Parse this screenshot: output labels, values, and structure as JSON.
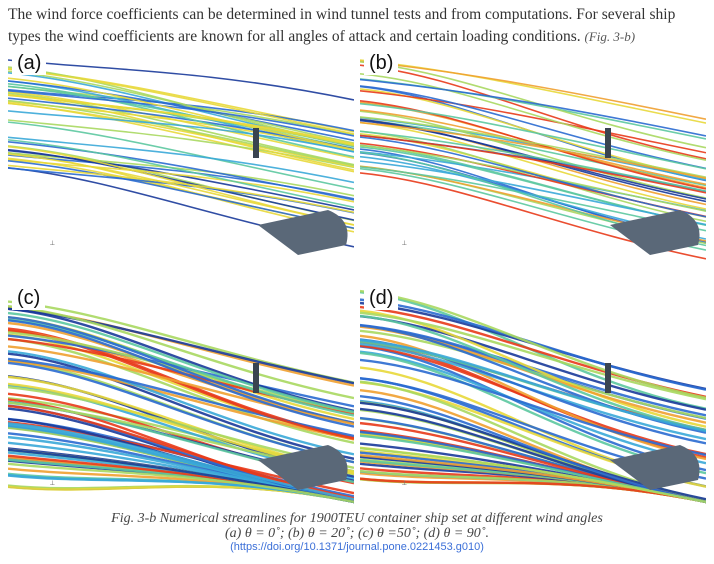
{
  "paragraph": {
    "text": "The wind force coefficients can be determined in wind tunnel tests and from computations. For several ship types the wind coefficients are known for all angles of attack and certain loading conditions.",
    "figure_ref": "(Fig. 3-b)"
  },
  "figure": {
    "panels": [
      {
        "label": "(a)",
        "angle_deg": 0
      },
      {
        "label": "(b)",
        "angle_deg": 20
      },
      {
        "label": "(c)",
        "angle_deg": 50
      },
      {
        "label": "(d)",
        "angle_deg": 90
      }
    ],
    "caption_line1": "Fig. 3-b Numerical streamlines for 1900TEU container ship set at different wind angles",
    "caption_line2": "(a) θ = 0˚; (b) θ = 20˚; (c) θ =50˚; (d) θ = 90˚.",
    "doi": "(https://doi.org/10.1371/journal.pone.0221453.g010)",
    "colors": {
      "hull": "#5a6878",
      "streamline_low": "#1a3a9a",
      "streamline_mid": "#e8d83a",
      "streamline_high": "#e83a1a",
      "link": "#3b6fd8"
    }
  }
}
